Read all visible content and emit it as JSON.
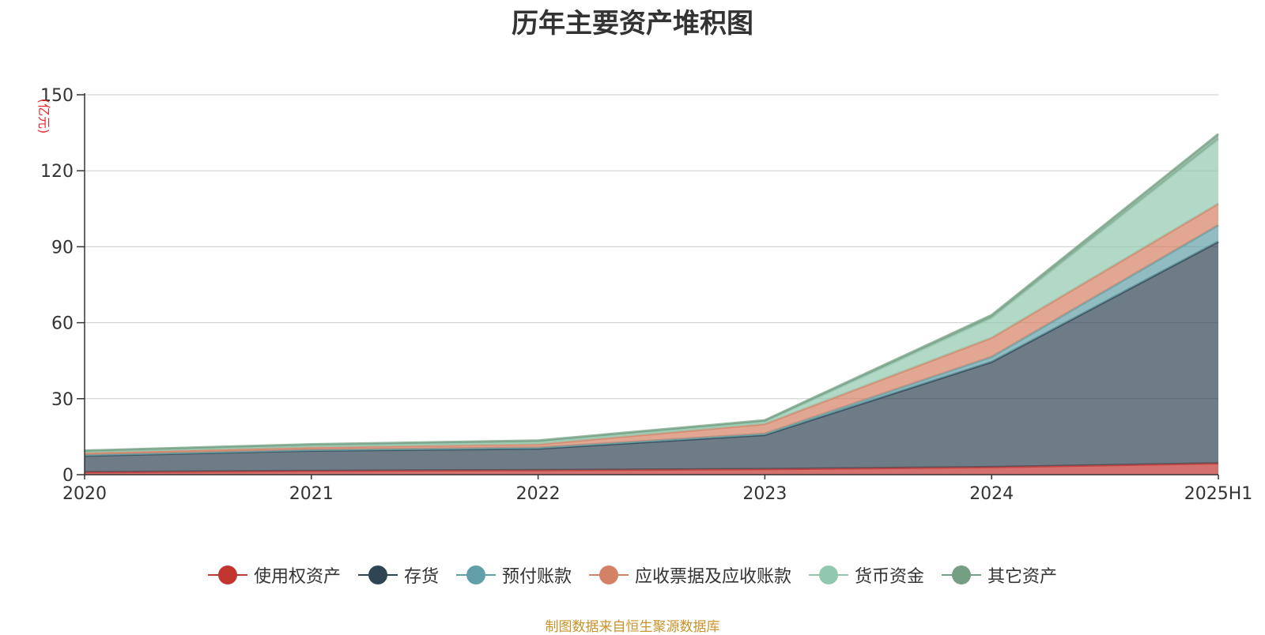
{
  "chart_data": {
    "type": "area",
    "stacked": true,
    "title": "历年主要资产堆积图",
    "unit_label": "(亿元)",
    "categories": [
      "2020",
      "2021",
      "2022",
      "2023",
      "2024",
      "2025H1"
    ],
    "ylim": [
      0,
      150
    ],
    "yticks": [
      0,
      30,
      60,
      90,
      120,
      150
    ],
    "grid": true,
    "legend_position": "bottom",
    "series": [
      {
        "name": "使用权资产",
        "color": "#c23531",
        "values": [
          1.0,
          1.5,
          1.8,
          2.2,
          3.0,
          4.5
        ]
      },
      {
        "name": "存货",
        "color": "#2f4554",
        "values": [
          6.5,
          8.0,
          8.5,
          13.5,
          41.5,
          87.5
        ]
      },
      {
        "name": "预付账款",
        "color": "#61a0a8",
        "values": [
          0.3,
          0.3,
          0.4,
          0.5,
          2.0,
          6.5
        ]
      },
      {
        "name": "应收票据及应收账款",
        "color": "#d48265",
        "values": [
          0.8,
          1.0,
          1.3,
          3.8,
          7.5,
          8.5
        ]
      },
      {
        "name": "货币资金",
        "color": "#91c7ae",
        "values": [
          0.6,
          0.8,
          1.0,
          1.0,
          8.0,
          25.5
        ]
      },
      {
        "name": "其它资产",
        "color": "#749f83",
        "values": [
          0.3,
          0.4,
          0.5,
          0.5,
          1.0,
          2.0
        ]
      }
    ]
  },
  "source_text": "制图数据来自恒生聚源数据库"
}
